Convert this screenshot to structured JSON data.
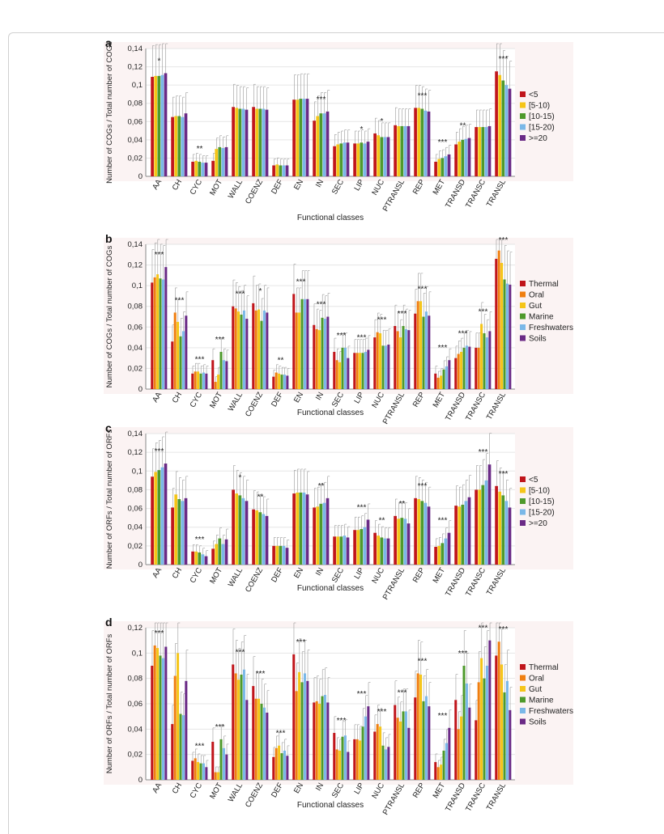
{
  "figure": {
    "categories": [
      "AA",
      "CH",
      "CYC",
      "MOT",
      "WALL",
      "COENZ",
      "DEF",
      "EN",
      "IN",
      "SEC",
      "LIP",
      "NUC",
      "PTRANSL",
      "REP",
      "MET",
      "TRANSD",
      "TRANSC",
      "TRANSL"
    ],
    "size_legend": [
      "<5",
      "[5-10)",
      "[10-15)",
      "[15-20)",
      ">=20"
    ],
    "env_legend": [
      "Thermal",
      "Oral",
      "Gut",
      "Marine",
      "Freshwaters",
      "Soils"
    ],
    "size_colors": [
      "#c0151b",
      "#f5c518",
      "#4e9a2c",
      "#7ab8e8",
      "#6a2a86"
    ],
    "env_colors": [
      "#c0151b",
      "#f07f10",
      "#f5c518",
      "#4e9a2c",
      "#7ab8e8",
      "#6a2a86"
    ]
  },
  "chart_data": [
    {
      "panel": "a",
      "type": "bar",
      "ylabel": "Number of COGs / Total number of COGs",
      "xlabel": "Functional classes",
      "ylim": [
        0,
        0.14
      ],
      "yticks": [
        "0",
        "0,02",
        "0,04",
        "0,06",
        "0,08",
        "0,1",
        "0,12",
        "0,14"
      ],
      "legend": "size",
      "legend_position": "right",
      "stars": [
        "*",
        "",
        "**",
        "",
        "",
        "",
        "",
        "",
        "***",
        "",
        "*",
        "*",
        "",
        "***",
        "***",
        "**",
        "",
        "***"
      ],
      "series": [
        {
          "name": "<5",
          "values": [
            0.109,
            0.065,
            0.016,
            0.017,
            0.076,
            0.076,
            0.012,
            0.084,
            0.061,
            0.033,
            0.036,
            0.047,
            0.056,
            0.075,
            0.016,
            0.035,
            0.054,
            0.115
          ]
        },
        {
          "name": "[5-10)",
          "values": [
            0.11,
            0.066,
            0.017,
            0.03,
            0.075,
            0.074,
            0.013,
            0.084,
            0.066,
            0.035,
            0.036,
            0.045,
            0.055,
            0.075,
            0.019,
            0.038,
            0.054,
            0.111
          ]
        },
        {
          "name": "[10-15)",
          "values": [
            0.11,
            0.066,
            0.016,
            0.032,
            0.074,
            0.074,
            0.012,
            0.085,
            0.069,
            0.036,
            0.037,
            0.043,
            0.055,
            0.074,
            0.02,
            0.04,
            0.054,
            0.105
          ]
        },
        {
          "name": "[15-20)",
          "values": [
            0.111,
            0.065,
            0.015,
            0.031,
            0.074,
            0.074,
            0.012,
            0.085,
            0.069,
            0.037,
            0.036,
            0.043,
            0.055,
            0.072,
            0.022,
            0.041,
            0.054,
            0.1
          ]
        },
        {
          "name": ">=20",
          "values": [
            0.113,
            0.069,
            0.015,
            0.032,
            0.073,
            0.073,
            0.012,
            0.085,
            0.071,
            0.037,
            0.038,
            0.043,
            0.055,
            0.071,
            0.024,
            0.042,
            0.055,
            0.096
          ]
        }
      ]
    },
    {
      "panel": "b",
      "type": "bar",
      "ylabel": "Number of COGs / Total number of COGs",
      "xlabel": "Functional classes",
      "ylim": [
        0,
        0.14
      ],
      "yticks": [
        "0",
        "0,02",
        "0,04",
        "0,06",
        "0,08",
        "0,1",
        "0,12",
        "0,14"
      ],
      "legend": "env",
      "legend_position": "right",
      "stars": [
        "***",
        "***",
        "***",
        "***",
        "***",
        "*",
        "**",
        "***",
        "***",
        "***",
        "***",
        "***",
        "***",
        "***",
        "***",
        "***",
        "***",
        "***"
      ],
      "series": [
        {
          "name": "Thermal",
          "values": [
            0.103,
            0.046,
            0.015,
            0.028,
            0.08,
            0.083,
            0.012,
            0.092,
            0.062,
            0.036,
            0.035,
            0.05,
            0.061,
            0.073,
            0.015,
            0.03,
            0.04,
            0.126
          ]
        },
        {
          "name": "Oral",
          "values": [
            0.108,
            0.074,
            0.017,
            0.007,
            0.078,
            0.076,
            0.016,
            0.074,
            0.058,
            0.028,
            0.035,
            0.055,
            0.056,
            0.085,
            0.011,
            0.034,
            0.04,
            0.134
          ]
        },
        {
          "name": "Gut",
          "values": [
            0.111,
            0.065,
            0.017,
            0.014,
            0.075,
            0.077,
            0.015,
            0.074,
            0.057,
            0.026,
            0.035,
            0.054,
            0.05,
            0.085,
            0.013,
            0.036,
            0.063,
            0.122
          ]
        },
        {
          "name": "Marine",
          "values": [
            0.107,
            0.051,
            0.015,
            0.036,
            0.072,
            0.066,
            0.014,
            0.087,
            0.069,
            0.04,
            0.035,
            0.042,
            0.061,
            0.07,
            0.019,
            0.04,
            0.054,
            0.106
          ]
        },
        {
          "name": "Freshwaters",
          "values": [
            0.106,
            0.056,
            0.016,
            0.028,
            0.076,
            0.076,
            0.014,
            0.087,
            0.068,
            0.04,
            0.036,
            0.042,
            0.058,
            0.075,
            0.022,
            0.042,
            0.05,
            0.102
          ]
        },
        {
          "name": "Soils",
          "values": [
            0.118,
            0.071,
            0.015,
            0.027,
            0.068,
            0.074,
            0.013,
            0.087,
            0.07,
            0.03,
            0.038,
            0.043,
            0.057,
            0.071,
            0.028,
            0.041,
            0.056,
            0.101
          ]
        }
      ]
    },
    {
      "panel": "c",
      "type": "bar",
      "ylabel": "Number of ORFs / Total number of ORFs",
      "xlabel": "Functional classes",
      "ylim": [
        0,
        0.14
      ],
      "yticks": [
        "0",
        "0,02",
        "0,04",
        "0,06",
        "0,08",
        "0,1",
        "0,12",
        "0,14"
      ],
      "legend": "size",
      "legend_position": "right",
      "stars": [
        "***",
        "",
        "***",
        "",
        "*",
        "**",
        "",
        "",
        "**",
        "",
        "***",
        "**",
        "**",
        "***",
        "***",
        "",
        "***",
        "***"
      ],
      "series": [
        {
          "name": "<5",
          "values": [
            0.094,
            0.061,
            0.014,
            0.017,
            0.08,
            0.059,
            0.02,
            0.076,
            0.061,
            0.03,
            0.037,
            0.034,
            0.052,
            0.071,
            0.019,
            0.063,
            0.08,
            0.084
          ]
        },
        {
          "name": "[5-10)",
          "values": [
            0.099,
            0.075,
            0.014,
            0.022,
            0.076,
            0.058,
            0.02,
            0.077,
            0.062,
            0.03,
            0.037,
            0.031,
            0.049,
            0.07,
            0.02,
            0.062,
            0.08,
            0.078
          ]
        },
        {
          "name": "[10-15)",
          "values": [
            0.101,
            0.07,
            0.013,
            0.028,
            0.074,
            0.056,
            0.02,
            0.077,
            0.065,
            0.03,
            0.038,
            0.029,
            0.05,
            0.068,
            0.023,
            0.064,
            0.085,
            0.074
          ]
        },
        {
          "name": "[15-20)",
          "values": [
            0.104,
            0.068,
            0.011,
            0.022,
            0.071,
            0.054,
            0.02,
            0.077,
            0.066,
            0.031,
            0.04,
            0.028,
            0.049,
            0.066,
            0.028,
            0.068,
            0.09,
            0.068
          ]
        },
        {
          "name": ">=20",
          "values": [
            0.108,
            0.071,
            0.009,
            0.027,
            0.068,
            0.052,
            0.018,
            0.075,
            0.071,
            0.029,
            0.048,
            0.028,
            0.044,
            0.062,
            0.034,
            0.072,
            0.107,
            0.061
          ]
        }
      ]
    },
    {
      "panel": "d",
      "type": "bar",
      "ylabel": "Number of ORFs / Total number of ORFs",
      "xlabel": "Functional classes",
      "ylim": [
        0,
        0.12
      ],
      "yticks": [
        "0",
        "0,02",
        "0,04",
        "0,06",
        "0,08",
        "0,1",
        "0,12"
      ],
      "legend": "env",
      "legend_position": "right",
      "stars": [
        "***",
        "",
        "***",
        "***",
        "***",
        "***",
        "***",
        "***",
        "",
        "***",
        "***",
        "***",
        "***",
        "***",
        "***",
        "***",
        "***",
        "***"
      ],
      "series": [
        {
          "name": "Thermal",
          "values": [
            0.09,
            0.044,
            0.015,
            0.03,
            0.091,
            0.074,
            0.018,
            0.099,
            0.061,
            0.037,
            0.032,
            0.038,
            0.059,
            0.065,
            0.014,
            0.063,
            0.047,
            0.098
          ]
        },
        {
          "name": "Oral",
          "values": [
            0.106,
            0.082,
            0.017,
            0.006,
            0.084,
            0.064,
            0.025,
            0.07,
            0.062,
            0.024,
            0.032,
            0.044,
            0.049,
            0.084,
            0.01,
            0.04,
            0.077,
            0.109
          ]
        },
        {
          "name": "Gut",
          "values": [
            0.104,
            0.1,
            0.014,
            0.006,
            0.079,
            0.064,
            0.027,
            0.085,
            0.06,
            0.023,
            0.031,
            0.042,
            0.046,
            0.083,
            0.012,
            0.05,
            0.096,
            0.091
          ]
        },
        {
          "name": "Marine",
          "values": [
            0.098,
            0.052,
            0.013,
            0.032,
            0.083,
            0.06,
            0.021,
            0.077,
            0.066,
            0.034,
            0.042,
            0.027,
            0.054,
            0.062,
            0.023,
            0.09,
            0.08,
            0.069
          ]
        },
        {
          "name": "Freshwaters",
          "values": [
            0.096,
            0.051,
            0.013,
            0.025,
            0.087,
            0.057,
            0.023,
            0.084,
            0.067,
            0.035,
            0.05,
            0.024,
            0.054,
            0.066,
            0.029,
            0.076,
            0.09,
            0.078
          ]
        },
        {
          "name": "Soils",
          "values": [
            0.105,
            0.078,
            0.01,
            0.02,
            0.063,
            0.053,
            0.019,
            0.078,
            0.061,
            0.022,
            0.058,
            0.026,
            0.041,
            0.058,
            0.041,
            0.057,
            0.11,
            0.055
          ]
        }
      ]
    }
  ]
}
